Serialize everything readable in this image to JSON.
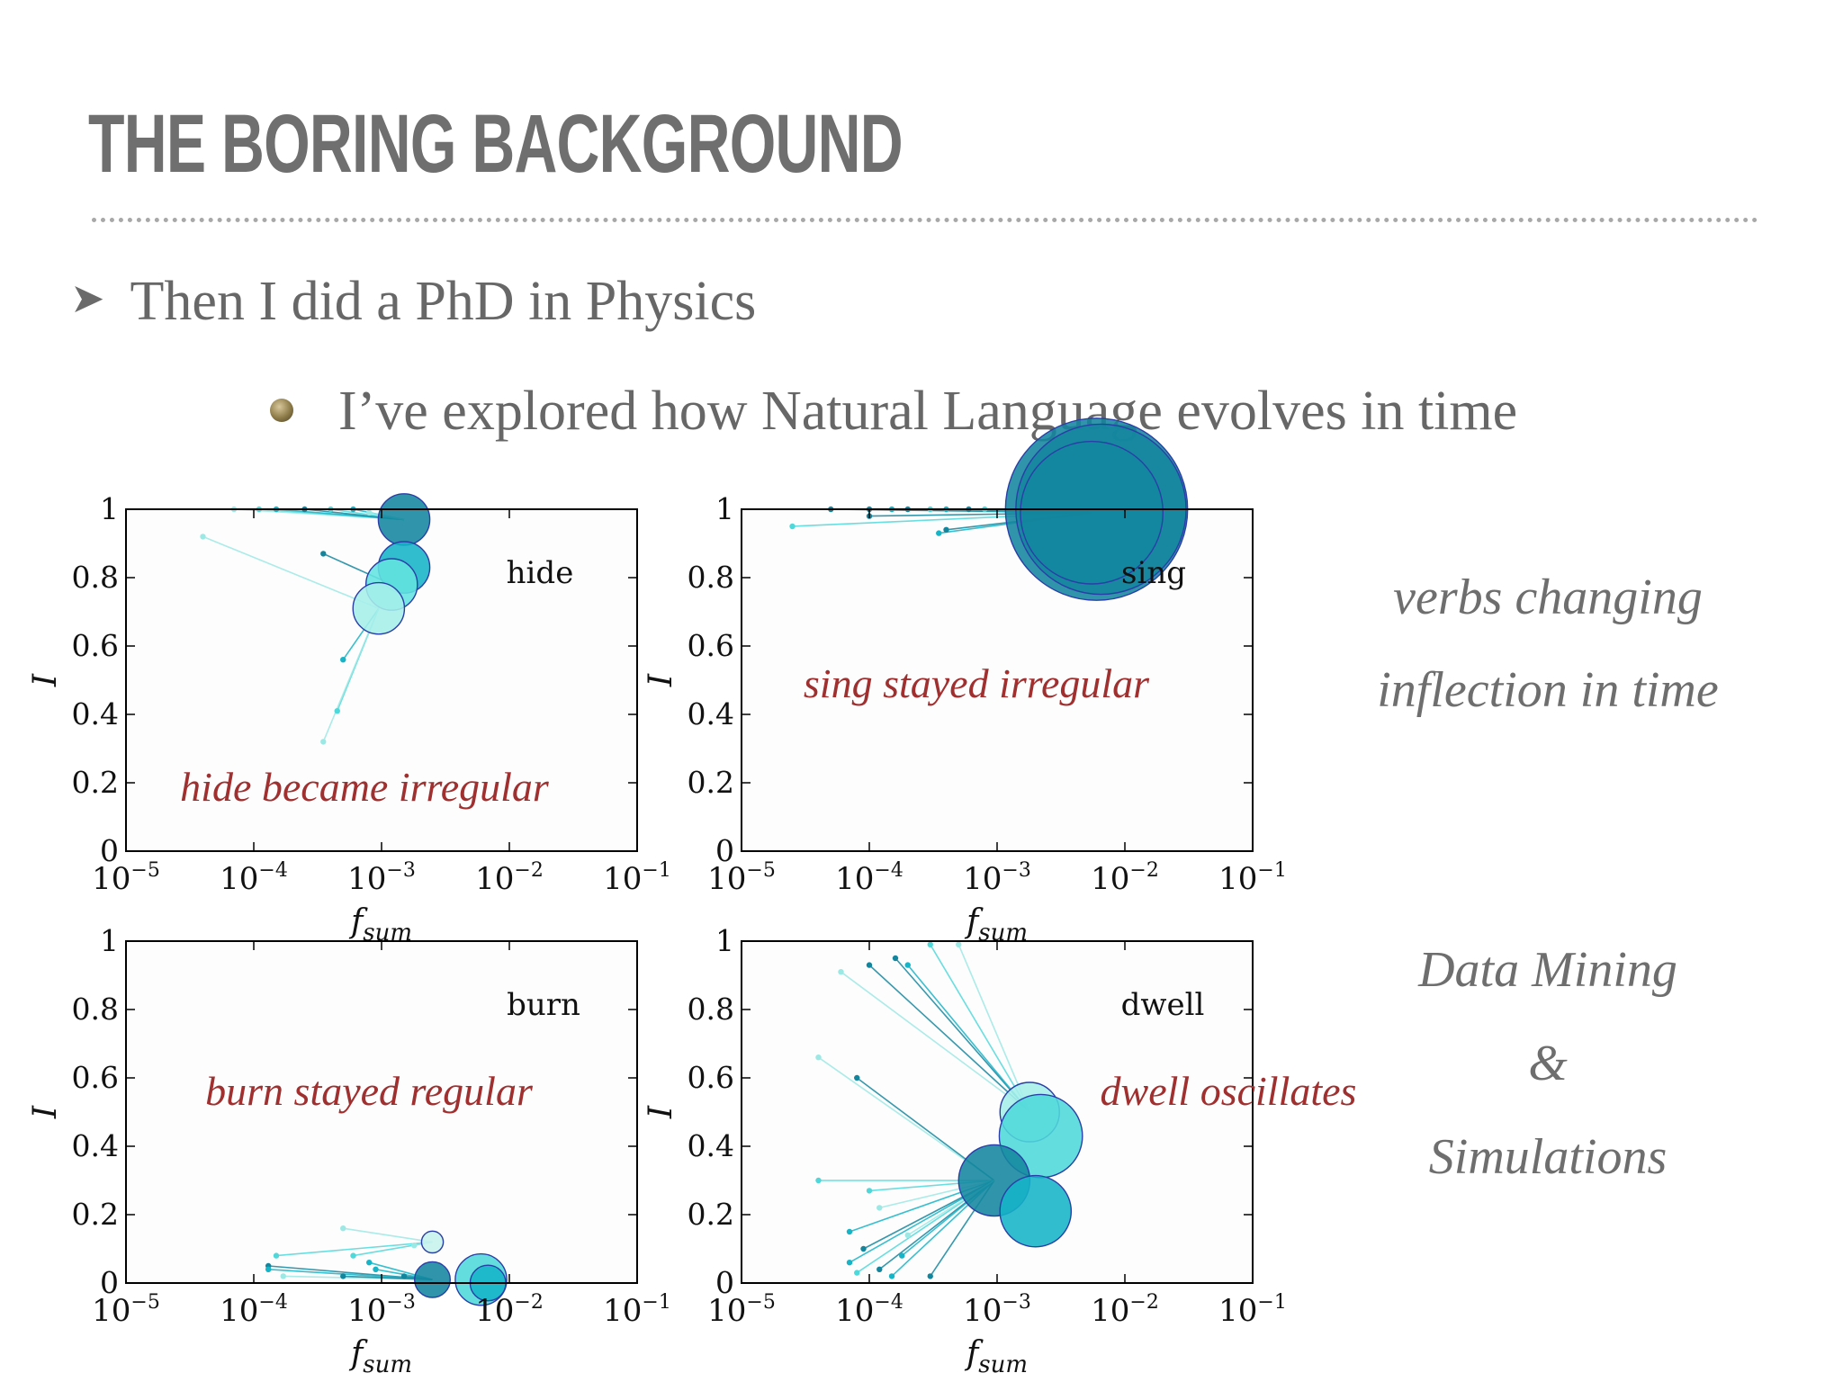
{
  "title": "THE BORING BACKGROUND",
  "bullets": {
    "level1": "Then I did a PhD in Physics",
    "level2": "I’ve explored how Natural Language evolves in time"
  },
  "side_notes": {
    "line1": "verbs changing",
    "line2": "inflection in time",
    "line3": "Data Mining",
    "line4": "&",
    "line5": "Simulations"
  },
  "colors": {
    "annotation": "#a03030",
    "frame": "#000000",
    "bullet_text": "#676767"
  },
  "chart_data": [
    {
      "type": "scatter",
      "word": "hide",
      "annotation": "hide became irregular",
      "xlabel": "f_sum",
      "ylabel": "I",
      "xscale": "log",
      "xlim": [
        1e-05,
        0.1
      ],
      "ylim": [
        0,
        1
      ],
      "xticks": [
        "10−5",
        "10−4",
        "10−3",
        "10−2",
        "10−1"
      ],
      "yticks": [
        "0",
        "0.2",
        "0.4",
        "0.6",
        "0.8",
        "1"
      ],
      "bubbles": [
        {
          "x": 0.0015,
          "y": 0.97,
          "r": 1.3,
          "color": "#13869e"
        },
        {
          "x": 0.0015,
          "y": 0.83,
          "r": 1.3,
          "color": "#15b4c7"
        },
        {
          "x": 0.0012,
          "y": 0.78,
          "r": 1.3,
          "color": "#63e4e0"
        },
        {
          "x": 0.00095,
          "y": 0.71,
          "r": 1.3,
          "color": "#a6efe9"
        }
      ],
      "points": [
        {
          "x": 7e-05,
          "y": 1.0,
          "color": "#9ce8e4"
        },
        {
          "x": 0.00011,
          "y": 1.0,
          "color": "#4fd8da"
        },
        {
          "x": 0.00015,
          "y": 1.0,
          "color": "#15b4c7"
        },
        {
          "x": 0.00025,
          "y": 1.0,
          "color": "#13869e"
        },
        {
          "x": 0.0004,
          "y": 1.0,
          "color": "#4fd8da"
        },
        {
          "x": 0.0006,
          "y": 1.0,
          "color": "#15b4c7"
        },
        {
          "x": 0.0008,
          "y": 0.99,
          "color": "#9ce8e4"
        },
        {
          "x": 4e-05,
          "y": 0.92,
          "color": "#9ce8e4"
        },
        {
          "x": 0.00035,
          "y": 0.87,
          "color": "#13869e"
        },
        {
          "x": 0.0005,
          "y": 0.56,
          "color": "#15b4c7"
        },
        {
          "x": 0.00045,
          "y": 0.41,
          "color": "#4fd8da"
        },
        {
          "x": 0.00035,
          "y": 0.32,
          "color": "#9ce8e4"
        }
      ]
    },
    {
      "type": "scatter",
      "word": "sing",
      "annotation": "sing stayed irregular",
      "xlabel": "f_sum",
      "ylabel": "I",
      "xscale": "log",
      "xlim": [
        1e-05,
        0.1
      ],
      "ylim": [
        0,
        1
      ],
      "xticks": [
        "10−5",
        "10−4",
        "10−3",
        "10−2",
        "10−1"
      ],
      "yticks": [
        "0",
        "0.2",
        "0.4",
        "0.6",
        "0.8",
        "1"
      ],
      "bubbles": [
        {
          "x": 0.006,
          "y": 1.0,
          "r": 4.6,
          "color": "#13869e"
        },
        {
          "x": 0.0065,
          "y": 1.0,
          "r": 4.3,
          "color": "#13869e"
        },
        {
          "x": 0.0055,
          "y": 0.99,
          "r": 3.6,
          "color": "#13869e"
        }
      ],
      "points": [
        {
          "x": 5e-05,
          "y": 1.0,
          "color": "#13869e"
        },
        {
          "x": 0.0001,
          "y": 1.0,
          "color": "#13869e"
        },
        {
          "x": 0.00015,
          "y": 1.0,
          "color": "#15b4c7"
        },
        {
          "x": 0.0002,
          "y": 1.0,
          "color": "#13869e"
        },
        {
          "x": 0.0003,
          "y": 1.0,
          "color": "#4fd8da"
        },
        {
          "x": 0.0004,
          "y": 1.0,
          "color": "#15b4c7"
        },
        {
          "x": 0.0006,
          "y": 1.0,
          "color": "#13869e"
        },
        {
          "x": 0.0008,
          "y": 1.0,
          "color": "#4fd8da"
        },
        {
          "x": 0.0001,
          "y": 0.98,
          "color": "#13869e"
        },
        {
          "x": 2.5e-05,
          "y": 0.95,
          "color": "#4fd8da"
        },
        {
          "x": 0.00035,
          "y": 0.93,
          "color": "#15b4c7"
        },
        {
          "x": 0.0004,
          "y": 0.94,
          "color": "#13869e"
        }
      ]
    },
    {
      "type": "scatter",
      "word": "burn",
      "annotation": "burn stayed regular",
      "xlabel": "f_sum",
      "ylabel": "I",
      "xscale": "log",
      "xlim": [
        1e-05,
        0.1
      ],
      "ylim": [
        0,
        1
      ],
      "xticks": [
        "10−5",
        "10−4",
        "10−3",
        "10−2",
        "10−1"
      ],
      "yticks": [
        "0",
        "0.2",
        "0.4",
        "0.6",
        "0.8",
        "1"
      ],
      "bubbles": [
        {
          "x": 0.0025,
          "y": 0.12,
          "r": 0.55,
          "color": "#c7f3ee"
        },
        {
          "x": 0.0025,
          "y": 0.01,
          "r": 0.9,
          "color": "#13869e"
        },
        {
          "x": 0.006,
          "y": 0.01,
          "r": 1.3,
          "color": "#4fd8da"
        },
        {
          "x": 0.0068,
          "y": 0.0,
          "r": 0.9,
          "color": "#15b4c7"
        }
      ],
      "points": [
        {
          "x": 0.00013,
          "y": 0.05,
          "color": "#13869e"
        },
        {
          "x": 0.00015,
          "y": 0.08,
          "color": "#4fd8da"
        },
        {
          "x": 0.00013,
          "y": 0.04,
          "color": "#15b4c7"
        },
        {
          "x": 0.00017,
          "y": 0.02,
          "color": "#9ce8e4"
        },
        {
          "x": 0.0005,
          "y": 0.16,
          "color": "#9ce8e4"
        },
        {
          "x": 0.0006,
          "y": 0.08,
          "color": "#4fd8da"
        },
        {
          "x": 0.0008,
          "y": 0.06,
          "color": "#15b4c7"
        },
        {
          "x": 0.0005,
          "y": 0.02,
          "color": "#13869e"
        },
        {
          "x": 0.0009,
          "y": 0.04,
          "color": "#15b4c7"
        },
        {
          "x": 0.0015,
          "y": 0.02,
          "color": "#13869e"
        },
        {
          "x": 0.0018,
          "y": 0.11,
          "color": "#9ce8e4"
        }
      ]
    },
    {
      "type": "scatter",
      "word": "dwell",
      "annotation": "dwell oscillates",
      "xlabel": "f_sum",
      "ylabel": "I",
      "xscale": "log",
      "xlim": [
        1e-05,
        0.1
      ],
      "ylim": [
        0,
        1
      ],
      "xticks": [
        "10−5",
        "10−4",
        "10−3",
        "10−2",
        "10−1"
      ],
      "yticks": [
        "0",
        "0.2",
        "0.4",
        "0.6",
        "0.8",
        "1"
      ],
      "bubbles": [
        {
          "x": 0.0018,
          "y": 0.5,
          "r": 1.5,
          "color": "#a6efe9"
        },
        {
          "x": 0.0022,
          "y": 0.43,
          "r": 2.1,
          "color": "#4fd8da"
        },
        {
          "x": 0.00095,
          "y": 0.3,
          "r": 1.8,
          "color": "#13869e"
        },
        {
          "x": 0.002,
          "y": 0.21,
          "r": 1.8,
          "color": "#15b4c7"
        }
      ],
      "points": [
        {
          "x": 0.0001,
          "y": 0.93,
          "color": "#13869e"
        },
        {
          "x": 0.00016,
          "y": 0.95,
          "color": "#13869e"
        },
        {
          "x": 0.0002,
          "y": 0.93,
          "color": "#15b4c7"
        },
        {
          "x": 0.0003,
          "y": 0.99,
          "color": "#4fd8da"
        },
        {
          "x": 0.0005,
          "y": 0.99,
          "color": "#9ce8e4"
        },
        {
          "x": 6e-05,
          "y": 0.91,
          "color": "#9ce8e4"
        },
        {
          "x": 4e-05,
          "y": 0.66,
          "color": "#9ce8e4"
        },
        {
          "x": 8e-05,
          "y": 0.6,
          "color": "#13869e"
        },
        {
          "x": 4e-05,
          "y": 0.3,
          "color": "#4fd8da"
        },
        {
          "x": 0.0001,
          "y": 0.27,
          "color": "#4fd8da"
        },
        {
          "x": 0.00012,
          "y": 0.22,
          "color": "#9ce8e4"
        },
        {
          "x": 7e-05,
          "y": 0.15,
          "color": "#15b4c7"
        },
        {
          "x": 9e-05,
          "y": 0.1,
          "color": "#13869e"
        },
        {
          "x": 7e-05,
          "y": 0.06,
          "color": "#15b4c7"
        },
        {
          "x": 0.00012,
          "y": 0.04,
          "color": "#13869e"
        },
        {
          "x": 0.00015,
          "y": 0.02,
          "color": "#15b4c7"
        },
        {
          "x": 0.0003,
          "y": 0.02,
          "color": "#13869e"
        },
        {
          "x": 8e-05,
          "y": 0.03,
          "color": "#4fd8da"
        },
        {
          "x": 0.00018,
          "y": 0.08,
          "color": "#15b4c7"
        },
        {
          "x": 0.0002,
          "y": 0.14,
          "color": "#9ce8e4"
        }
      ]
    }
  ]
}
